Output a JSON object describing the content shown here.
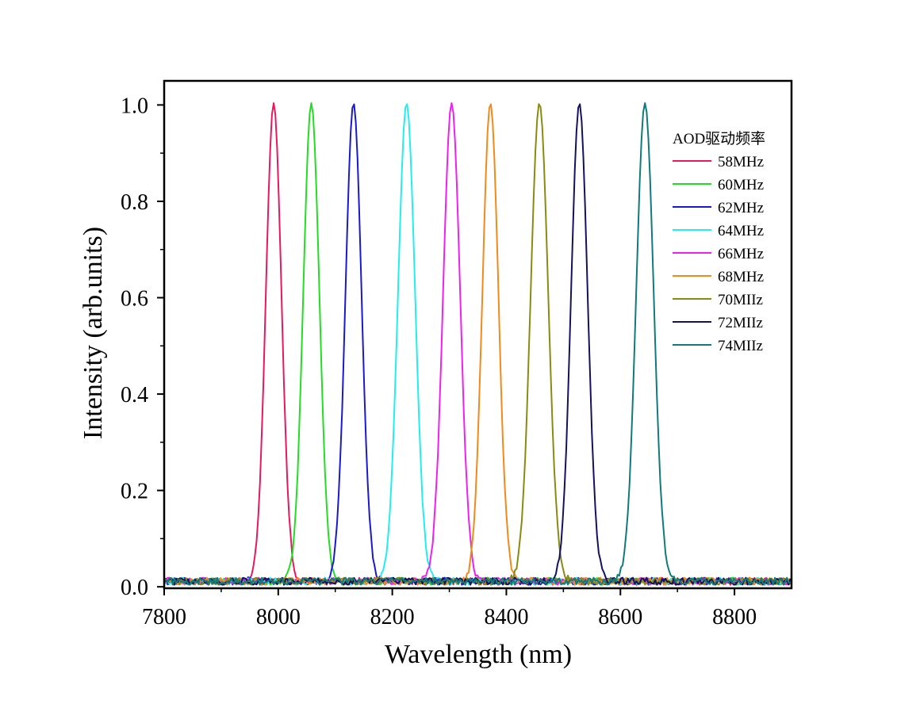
{
  "chart_data": {
    "type": "line",
    "title": "",
    "xlabel": "Wavelength (nm)",
    "ylabel": "Intensity (arb.units)",
    "xlim": [
      7800,
      8900
    ],
    "ylim": [
      -0.003,
      1.05
    ],
    "xticks": [
      7800,
      8000,
      8200,
      8400,
      8600,
      8800
    ],
    "xtick_labels": [
      "7800",
      "8000",
      "8200",
      "8400",
      "8600",
      "8800"
    ],
    "yticks": [
      0.0,
      0.2,
      0.4,
      0.6,
      0.8,
      1.0
    ],
    "ytick_labels": [
      "0.0",
      "0.2",
      "0.4",
      "0.6",
      "0.8",
      "1.0"
    ],
    "grid": false,
    "legend_title": "AOD驱动频率",
    "legend_position": "top-right",
    "series": [
      {
        "name": "58MHz",
        "color": "#e6195f",
        "peak_x": 7992,
        "peak_y": 1.0,
        "fwhm": 32
      },
      {
        "name": "60MHz",
        "color": "#22dd22",
        "peak_x": 8058,
        "peak_y": 1.0,
        "fwhm": 33
      },
      {
        "name": "62MHz",
        "color": "#1a1acc",
        "peak_x": 8132,
        "peak_y": 1.0,
        "fwhm": 33
      },
      {
        "name": "64MHz",
        "color": "#22eeee",
        "peak_x": 8225,
        "peak_y": 1.0,
        "fwhm": 35
      },
      {
        "name": "66MHz",
        "color": "#ee22ee",
        "peak_x": 8304,
        "peak_y": 1.0,
        "fwhm": 35
      },
      {
        "name": "68MHz",
        "color": "#f08a1a",
        "peak_x": 8372,
        "peak_y": 1.0,
        "fwhm": 33
      },
      {
        "name": "70MIIz",
        "color": "#8a8a10",
        "peak_x": 8458,
        "peak_y": 1.0,
        "fwhm": 36
      },
      {
        "name": "72MIIz",
        "color": "#12125e",
        "peak_x": 8528,
        "peak_y": 1.0,
        "fwhm": 34
      },
      {
        "name": "74MIIz",
        "color": "#127a7a",
        "peak_x": 8643,
        "peak_y": 1.0,
        "fwhm": 36
      }
    ]
  }
}
